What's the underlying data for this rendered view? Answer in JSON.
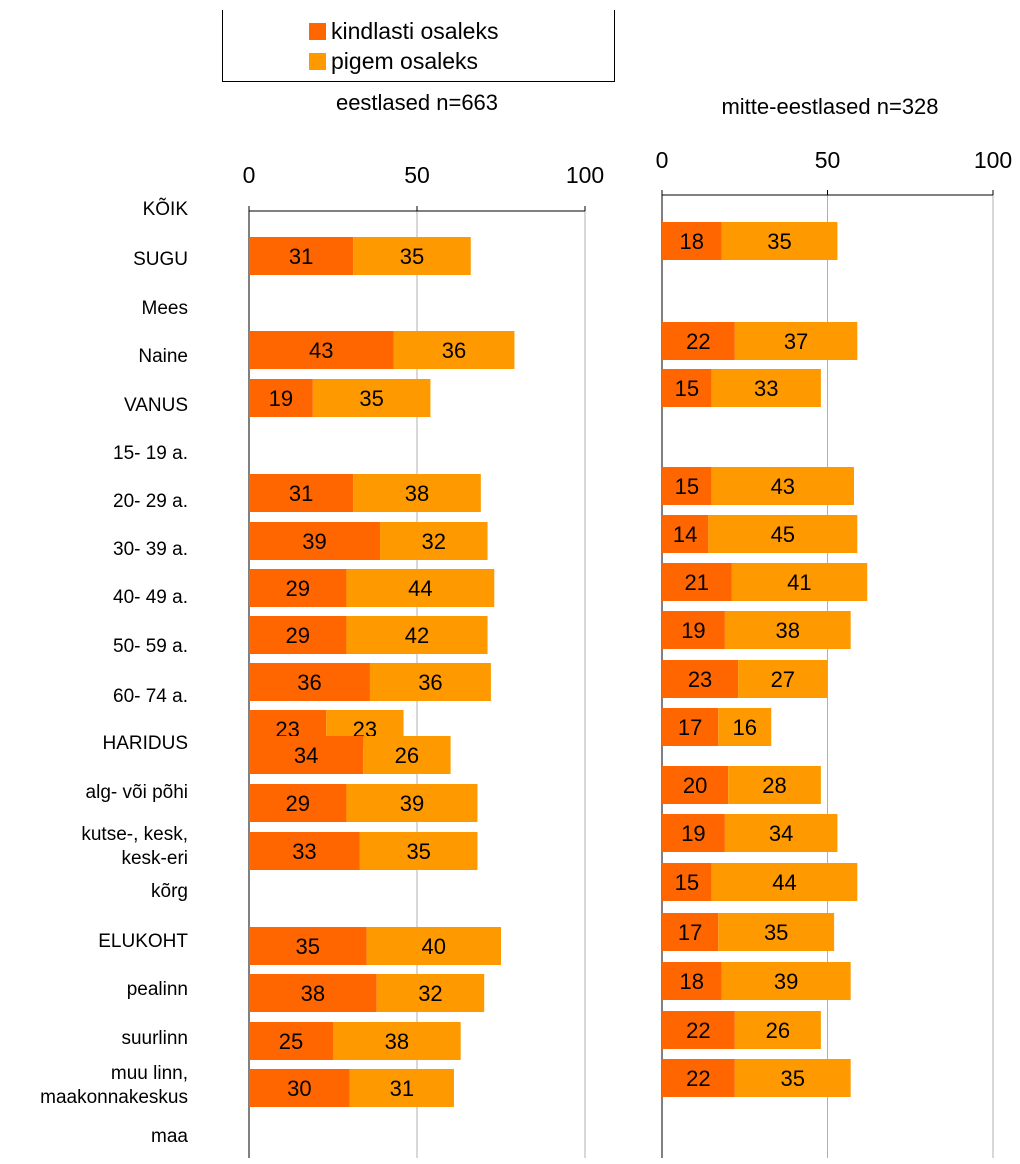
{
  "colors": {
    "kindlasti": "#FF6600",
    "pigem": "#FF9900"
  },
  "legend": [
    {
      "label": "kindlasti osaleks",
      "color": "#FF6600"
    },
    {
      "label": "pigem osaleks",
      "color": "#FF9900"
    }
  ],
  "chart_data": [
    {
      "type": "bar",
      "orientation": "horizontal",
      "stacked": true,
      "title": "eestlased n=663",
      "xlim": [
        0,
        100
      ],
      "xticks": [
        "0",
        "50",
        "100"
      ],
      "series": [
        {
          "name": "kindlasti osaleks",
          "values": [
            31,
            43,
            19,
            31,
            39,
            29,
            29,
            36,
            23,
            34,
            29,
            33,
            35,
            38,
            25,
            30
          ]
        },
        {
          "name": "pigem osaleks",
          "values": [
            35,
            36,
            35,
            38,
            32,
            44,
            42,
            36,
            23,
            26,
            39,
            35,
            40,
            32,
            38,
            31
          ]
        }
      ]
    },
    {
      "type": "bar",
      "orientation": "horizontal",
      "stacked": true,
      "title": "mitte-eestlased n=328",
      "xlim": [
        0,
        100
      ],
      "xticks": [
        "0",
        "50",
        "100"
      ],
      "series": [
        {
          "name": "kindlasti osaleks",
          "values": [
            18,
            22,
            15,
            15,
            14,
            21,
            19,
            23,
            17,
            20,
            19,
            15,
            17,
            18,
            22,
            22
          ]
        },
        {
          "name": "pigem osaleks",
          "values": [
            35,
            37,
            33,
            43,
            45,
            41,
            38,
            27,
            16,
            28,
            34,
            44,
            35,
            39,
            26,
            35
          ]
        }
      ]
    }
  ],
  "categories": [
    {
      "label": "KÕIK",
      "bar": 0
    },
    {
      "label": "SUGU"
    },
    {
      "label": "Mees",
      "bar": 1
    },
    {
      "label": "Naine",
      "bar": 2
    },
    {
      "label": "VANUS"
    },
    {
      "label": "15- 19 a.",
      "bar": 3
    },
    {
      "label": "20- 29 a.",
      "bar": 4
    },
    {
      "label": "30- 39 a.",
      "bar": 5
    },
    {
      "label": "40- 49 a.",
      "bar": 6
    },
    {
      "label": "50- 59 a.",
      "bar": 7
    },
    {
      "label": "60- 74 a.",
      "bar": 8
    },
    {
      "label": "HARIDUS"
    },
    {
      "label": "alg- või põhi",
      "bar": 9
    },
    {
      "label": "kutse-, kesk,\nkesk-eri",
      "bar": 10
    },
    {
      "label": "kõrg",
      "bar": 11
    },
    {
      "label": "ELUKOHT"
    },
    {
      "label": "pealinn",
      "bar": 12
    },
    {
      "label": "suurlinn",
      "bar": 13
    },
    {
      "label": "muu linn,\nmaakonnakeskus",
      "bar": 14
    },
    {
      "label": "maa",
      "bar": 15
    }
  ]
}
